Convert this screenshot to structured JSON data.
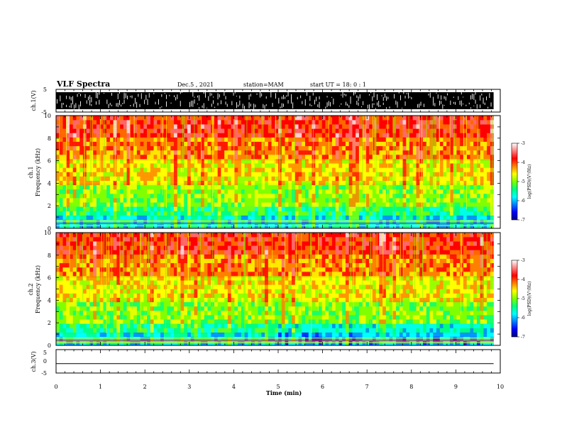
{
  "header": {
    "title": "VLF Spectra",
    "date": "Dec.5 , 2021",
    "station": "station=MAM",
    "start": "start UT = 18: 0 : 1"
  },
  "chart_data": [
    {
      "type": "line",
      "name": "ch1-waveform",
      "ylabel": "ch.1(V)",
      "xlim": [
        0,
        10
      ],
      "ylim": [
        -5,
        5
      ],
      "y_ticks": [
        "5",
        "-5"
      ],
      "signal_extent_min": 9.85
    },
    {
      "type": "heatmap",
      "name": "ch1-spectrogram",
      "ylabel_line1": "ch.1",
      "ylabel_line2": "Frequency (kHz)",
      "xlim": [
        0,
        10
      ],
      "ylim": [
        0,
        10
      ],
      "y_ticks": [
        "0",
        "2",
        "4",
        "6",
        "8",
        "10"
      ],
      "data_extent_min": 9.85,
      "colorbar": {
        "label": "log(PSD)(V²/Hz)",
        "range": [
          -7,
          -3
        ],
        "ticks": [
          "-3",
          "-4",
          "-5",
          "-6",
          "-7"
        ],
        "colors": [
          "#000080",
          "#0000ff",
          "#0080ff",
          "#00ffff",
          "#00ff80",
          "#80ff00",
          "#ffff00",
          "#ff8000",
          "#ff0000",
          "#ff8080",
          "#ffffff"
        ]
      }
    },
    {
      "type": "heatmap",
      "name": "ch2-spectrogram",
      "ylabel_line1": "ch.2",
      "ylabel_line2": "Frequency (kHz)",
      "xlim": [
        0,
        10
      ],
      "ylim": [
        0,
        10
      ],
      "y_ticks": [
        "0",
        "2",
        "4",
        "6",
        "8",
        "10"
      ],
      "data_extent_min": 9.85,
      "colorbar": {
        "label": "log(PSD)(V²/Hz)",
        "range": [
          -7,
          -3
        ],
        "ticks": [
          "-3",
          "-4",
          "-5",
          "-6",
          "-7"
        ],
        "colors": [
          "#000080",
          "#0000ff",
          "#0080ff",
          "#00ffff",
          "#00ff80",
          "#80ff00",
          "#ffff00",
          "#ff8000",
          "#ff0000",
          "#ff8080",
          "#ffffff"
        ]
      }
    },
    {
      "type": "line",
      "name": "ch3-waveform",
      "ylabel": "ch.3(V)",
      "xlim": [
        0,
        10
      ],
      "ylim": [
        -5,
        5
      ],
      "y_ticks": [
        "5",
        "0",
        "-5"
      ],
      "x": [
        0,
        9.85
      ],
      "y": [
        -1,
        -1
      ]
    }
  ],
  "xaxis": {
    "label": "Time (min)",
    "ticks": [
      "0",
      "1",
      "2",
      "3",
      "4",
      "5",
      "6",
      "7",
      "8",
      "9",
      "10"
    ]
  }
}
